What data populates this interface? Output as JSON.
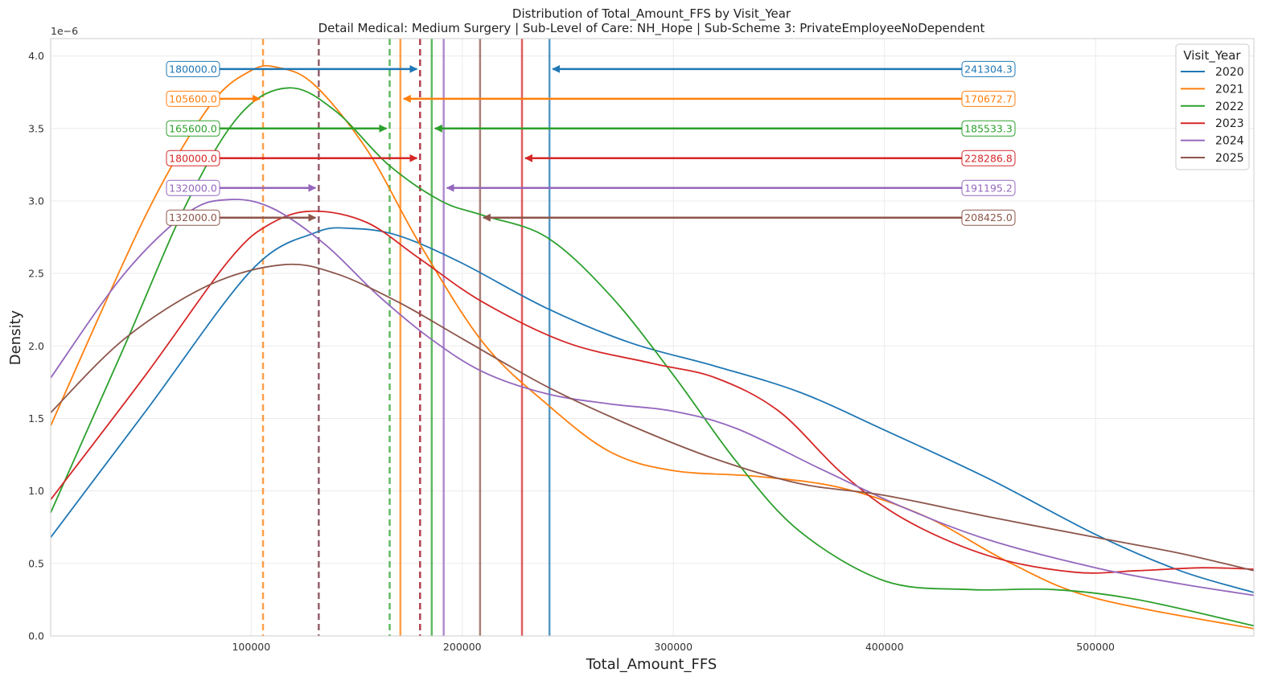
{
  "chart_data": {
    "type": "line",
    "title": "Distribution of Total_Amount_FFS by Visit_Year",
    "subtitle": "Detail Medical: Medium Surgery | Sub-Level of Care: NH_Hope | Sub-Scheme 3: PrivateEmployeeNoDependent",
    "xlabel": "Total_Amount_FFS",
    "ylabel": "Density",
    "y_scale_label": "1e−6",
    "xlim": [
      5000,
      575000
    ],
    "ylim": [
      0,
      4.12
    ],
    "x_ticks": [
      100000,
      200000,
      300000,
      400000,
      500000
    ],
    "y_ticks": [
      0.0,
      0.5,
      1.0,
      1.5,
      2.0,
      2.5,
      3.0,
      3.5,
      4.0
    ],
    "x_tick_labels": [
      "100000",
      "200000",
      "300000",
      "400000",
      "500000"
    ],
    "y_tick_labels": [
      "0.0",
      "0.5",
      "1.0",
      "1.5",
      "2.0",
      "2.5",
      "3.0",
      "3.5",
      "4.0"
    ],
    "grid": true,
    "legend_title": "Visit_Year",
    "legend_position": "top-right",
    "series": [
      {
        "name": "2020",
        "color": "#1f77b4",
        "median": 180000.0,
        "mean": 241304.3,
        "median_label": "180000.0",
        "mean_label": "241304.3",
        "points": [
          [
            5000,
            0.68
          ],
          [
            50000,
            1.55
          ],
          [
            100000,
            2.52
          ],
          [
            130000,
            2.78
          ],
          [
            148000,
            2.81
          ],
          [
            170000,
            2.76
          ],
          [
            200000,
            2.57
          ],
          [
            240000,
            2.26
          ],
          [
            280000,
            2.02
          ],
          [
            320000,
            1.86
          ],
          [
            360000,
            1.68
          ],
          [
            400000,
            1.42
          ],
          [
            450000,
            1.08
          ],
          [
            500000,
            0.7
          ],
          [
            540000,
            0.45
          ],
          [
            575000,
            0.3
          ]
        ]
      },
      {
        "name": "2021",
        "color": "#ff7f0e",
        "median": 105600.0,
        "mean": 170672.7,
        "median_label": "105600.0",
        "mean_label": "170672.7",
        "points": [
          [
            5000,
            1.45
          ],
          [
            50000,
            2.9
          ],
          [
            80000,
            3.65
          ],
          [
            100000,
            3.9
          ],
          [
            113000,
            3.92
          ],
          [
            130000,
            3.8
          ],
          [
            155000,
            3.35
          ],
          [
            180000,
            2.7
          ],
          [
            210000,
            2.02
          ],
          [
            240000,
            1.6
          ],
          [
            270000,
            1.27
          ],
          [
            300000,
            1.14
          ],
          [
            340000,
            1.1
          ],
          [
            380000,
            1.02
          ],
          [
            420000,
            0.82
          ],
          [
            460000,
            0.5
          ],
          [
            500000,
            0.26
          ],
          [
            575000,
            0.05
          ]
        ]
      },
      {
        "name": "2022",
        "color": "#2ca02c",
        "median": 165600.0,
        "mean": 185533.3,
        "median_label": "165600.0",
        "mean_label": "185533.3",
        "points": [
          [
            5000,
            0.85
          ],
          [
            40000,
            2.0
          ],
          [
            70000,
            3.0
          ],
          [
            95000,
            3.6
          ],
          [
            118000,
            3.78
          ],
          [
            140000,
            3.62
          ],
          [
            165000,
            3.25
          ],
          [
            190000,
            3.0
          ],
          [
            210000,
            2.9
          ],
          [
            240000,
            2.75
          ],
          [
            270000,
            2.35
          ],
          [
            300000,
            1.8
          ],
          [
            330000,
            1.2
          ],
          [
            360000,
            0.72
          ],
          [
            400000,
            0.38
          ],
          [
            440000,
            0.32
          ],
          [
            480000,
            0.32
          ],
          [
            520000,
            0.25
          ],
          [
            575000,
            0.07
          ]
        ]
      },
      {
        "name": "2023",
        "color": "#d62728",
        "median": 180000.0,
        "mean": 228286.8,
        "median_label": "180000.0",
        "mean_label": "228286.8",
        "points": [
          [
            5000,
            0.94
          ],
          [
            50000,
            1.8
          ],
          [
            90000,
            2.6
          ],
          [
            110000,
            2.85
          ],
          [
            130000,
            2.93
          ],
          [
            155000,
            2.85
          ],
          [
            180000,
            2.6
          ],
          [
            210000,
            2.3
          ],
          [
            250000,
            2.02
          ],
          [
            290000,
            1.88
          ],
          [
            320000,
            1.78
          ],
          [
            350000,
            1.55
          ],
          [
            380000,
            1.12
          ],
          [
            410000,
            0.8
          ],
          [
            450000,
            0.55
          ],
          [
            490000,
            0.44
          ],
          [
            520000,
            0.45
          ],
          [
            550000,
            0.47
          ],
          [
            575000,
            0.46
          ]
        ]
      },
      {
        "name": "2024",
        "color": "#9467bd",
        "median": 132000.0,
        "mean": 191195.2,
        "median_label": "132000.0",
        "mean_label": "191195.2",
        "points": [
          [
            5000,
            1.78
          ],
          [
            40000,
            2.5
          ],
          [
            70000,
            2.92
          ],
          [
            90000,
            3.01
          ],
          [
            110000,
            2.95
          ],
          [
            135000,
            2.7
          ],
          [
            160000,
            2.35
          ],
          [
            185000,
            2.05
          ],
          [
            210000,
            1.82
          ],
          [
            240000,
            1.67
          ],
          [
            270000,
            1.6
          ],
          [
            300000,
            1.55
          ],
          [
            330000,
            1.43
          ],
          [
            370000,
            1.15
          ],
          [
            410000,
            0.88
          ],
          [
            450000,
            0.66
          ],
          [
            500000,
            0.47
          ],
          [
            540000,
            0.36
          ],
          [
            575000,
            0.28
          ]
        ]
      },
      {
        "name": "2025",
        "color": "#8c564b",
        "median": 132000.0,
        "mean": 208425.0,
        "median_label": "132000.0",
        "mean_label": "208425.0",
        "points": [
          [
            5000,
            1.54
          ],
          [
            40000,
            2.05
          ],
          [
            80000,
            2.42
          ],
          [
            115000,
            2.56
          ],
          [
            140000,
            2.5
          ],
          [
            170000,
            2.3
          ],
          [
            200000,
            2.05
          ],
          [
            240000,
            1.72
          ],
          [
            280000,
            1.45
          ],
          [
            320000,
            1.22
          ],
          [
            360000,
            1.05
          ],
          [
            400000,
            0.97
          ],
          [
            450000,
            0.82
          ],
          [
            500000,
            0.68
          ],
          [
            540000,
            0.57
          ],
          [
            575000,
            0.45
          ]
        ]
      }
    ]
  }
}
